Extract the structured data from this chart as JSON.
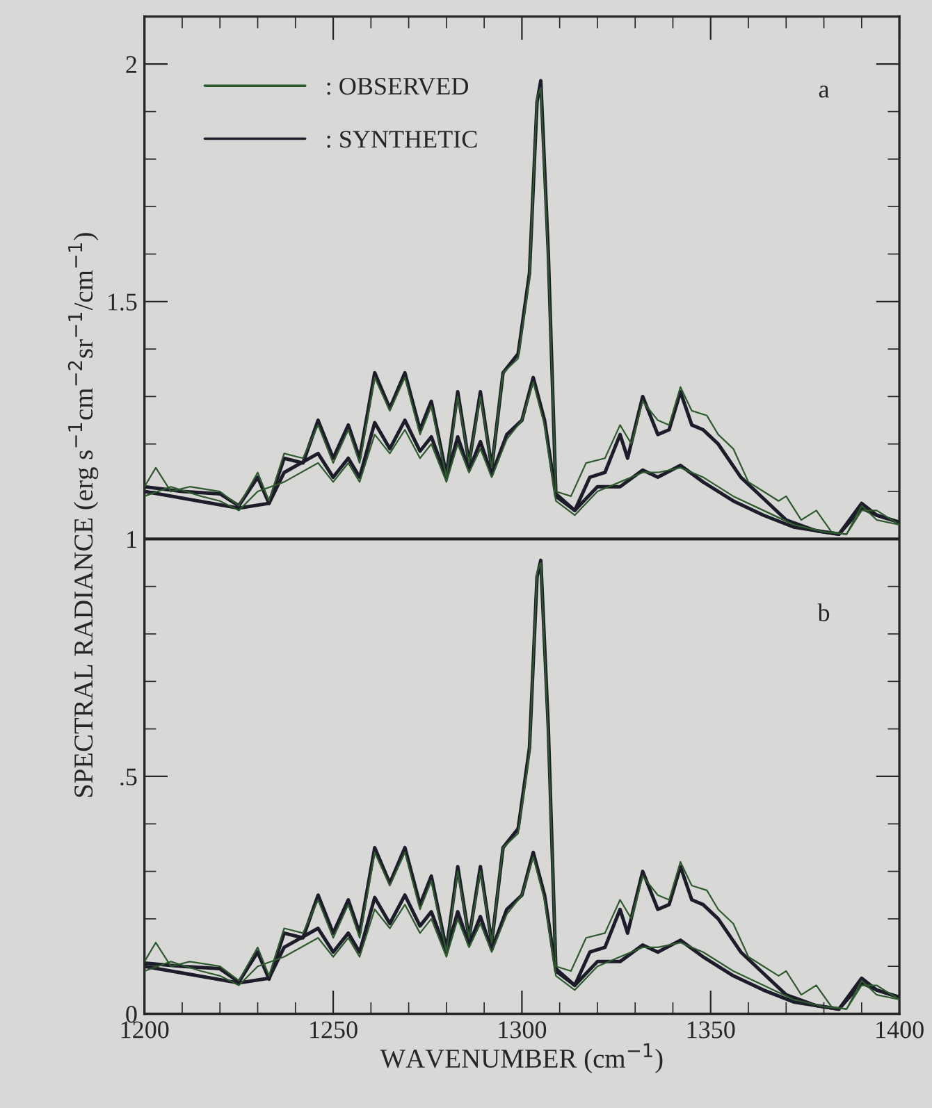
{
  "chart_data": {
    "type": "line",
    "xlabel": "WAVENUMBER (cm$^{−1}$)",
    "ylabel": "SPECTRAL RADIANCE (erg s$^{−1}$cm$^{−2}$sr$^{−1}$/cm$^{−1}$)",
    "xlim": [
      1200,
      1400
    ],
    "ylim": [
      0,
      2.1
    ],
    "xticks": [
      1200,
      {
        "value": 1210,
        "label": null
      },
      {
        "value": 1220,
        "label": null
      },
      {
        "value": 1230,
        "label": null
      },
      {
        "value": 1240,
        "label": null
      },
      1250,
      {
        "value": 1260,
        "label": null
      },
      {
        "value": 1270,
        "label": null
      },
      {
        "value": 1280,
        "label": null
      },
      {
        "value": 1290,
        "label": null
      },
      1300,
      {
        "value": 1310,
        "label": null
      },
      {
        "value": 1320,
        "label": null
      },
      {
        "value": 1330,
        "label": null
      },
      {
        "value": 1340,
        "label": null
      },
      1350,
      {
        "value": 1360,
        "label": null
      },
      {
        "value": 1370,
        "label": null
      },
      {
        "value": 1380,
        "label": null
      },
      {
        "value": 1390,
        "label": null
      },
      1400
    ],
    "yticks": [
      0,
      {
        "value": 0.1,
        "label": null
      },
      {
        "value": 0.2,
        "label": null
      },
      {
        "value": 0.3,
        "label": null
      },
      {
        "value": 0.4,
        "label": null
      },
      {
        "value": 0.5,
        "label": ".5"
      },
      {
        "value": 0.6,
        "label": null
      },
      {
        "value": 0.7,
        "label": null
      },
      {
        "value": 0.8,
        "label": null
      },
      {
        "value": 0.9,
        "label": null
      },
      1,
      {
        "value": 1.1,
        "label": null
      },
      {
        "value": 1.2,
        "label": null
      },
      {
        "value": 1.3,
        "label": null
      },
      {
        "value": 1.4,
        "label": null
      },
      1.5,
      {
        "value": 1.6,
        "label": null
      },
      {
        "value": 1.7,
        "label": null
      },
      {
        "value": 1.8,
        "label": null
      },
      {
        "value": 1.9,
        "label": null
      },
      2
    ],
    "legend": "top left",
    "grid": false,
    "line_style": "solid",
    "marker": "none",
    "ref_lines": [
      {
        "axis": "y",
        "value": 1,
        "label": null,
        "color": "#222222"
      }
    ],
    "annotations": [
      "a",
      "b"
    ],
    "series": [
      {
        "name": ": OBSERVED",
        "color": "#2f5a2f",
        "x": [
          1200,
          1203,
          1207,
          1212,
          1220,
          1225,
          1230,
          1233,
          1237,
          1242,
          1246,
          1250,
          1254,
          1257,
          1261,
          1265,
          1269,
          1273,
          1276,
          1280,
          1283,
          1286,
          1289,
          1292,
          1295,
          1299,
          1302,
          1304,
          1305,
          1307,
          1309,
          1313,
          1317,
          1322,
          1326,
          1329,
          1332,
          1336,
          1339,
          1342,
          1345,
          1349,
          1352,
          1356,
          1360,
          1364,
          1368,
          1370,
          1374,
          1378,
          1382,
          1386,
          1390,
          1394,
          1400
        ],
        "values": [
          1.11,
          1.15,
          1.1,
          1.11,
          1.1,
          1.07,
          1.14,
          1.08,
          1.18,
          1.17,
          1.24,
          1.16,
          1.23,
          1.16,
          1.34,
          1.27,
          1.34,
          1.22,
          1.28,
          1.13,
          1.3,
          1.16,
          1.3,
          1.15,
          1.35,
          1.38,
          1.55,
          1.93,
          1.95,
          1.58,
          1.1,
          1.09,
          1.16,
          1.17,
          1.24,
          1.2,
          1.29,
          1.25,
          1.24,
          1.32,
          1.27,
          1.26,
          1.22,
          1.19,
          1.12,
          1.1,
          1.08,
          1.09,
          1.04,
          1.06,
          1.015,
          1.01,
          1.07,
          1.04,
          1.03
        ]
      },
      {
        "color": "#2f5a2f",
        "x": [
          1200,
          1207,
          1215,
          1220,
          1225,
          1230,
          1237,
          1246,
          1250,
          1254,
          1257,
          1261,
          1265,
          1269,
          1273,
          1276,
          1280,
          1283,
          1286,
          1289,
          1292,
          1296,
          1300,
          1303,
          1306,
          1309,
          1314,
          1320,
          1326,
          1332,
          1336,
          1342,
          1348,
          1356,
          1364,
          1372,
          1380,
          1386,
          1390,
          1394,
          1400
        ],
        "values": [
          1.09,
          1.11,
          1.09,
          1.08,
          1.06,
          1.1,
          1.12,
          1.16,
          1.12,
          1.16,
          1.12,
          1.22,
          1.18,
          1.23,
          1.17,
          1.2,
          1.12,
          1.2,
          1.14,
          1.19,
          1.13,
          1.21,
          1.25,
          1.33,
          1.24,
          1.08,
          1.05,
          1.1,
          1.12,
          1.14,
          1.14,
          1.15,
          1.13,
          1.09,
          1.06,
          1.03,
          1.015,
          1.01,
          1.06,
          1.06,
          1.03
        ]
      },
      {
        "name": ": SYNTHETIC",
        "color": "#1c1c2a",
        "x": [
          1200,
          1210,
          1220,
          1225,
          1230,
          1233,
          1237,
          1242,
          1246,
          1250,
          1254,
          1257,
          1261,
          1265,
          1269,
          1273,
          1276,
          1280,
          1283,
          1286,
          1289,
          1292,
          1295,
          1299,
          1302,
          1304,
          1305,
          1307,
          1309,
          1314,
          1318,
          1322,
          1326,
          1328,
          1332,
          1336,
          1339,
          1342,
          1345,
          1348,
          1352,
          1358,
          1364,
          1370,
          1378,
          1384,
          1390,
          1394,
          1400
        ],
        "values": [
          1.11,
          1.1,
          1.095,
          1.07,
          1.13,
          1.075,
          1.17,
          1.16,
          1.25,
          1.17,
          1.24,
          1.17,
          1.35,
          1.275,
          1.35,
          1.23,
          1.29,
          1.135,
          1.31,
          1.16,
          1.31,
          1.15,
          1.35,
          1.39,
          1.56,
          1.92,
          1.965,
          1.6,
          1.095,
          1.06,
          1.13,
          1.14,
          1.22,
          1.17,
          1.3,
          1.22,
          1.23,
          1.31,
          1.24,
          1.23,
          1.2,
          1.13,
          1.085,
          1.04,
          1.017,
          1.01,
          1.075,
          1.05,
          1.035
        ]
      },
      {
        "color": "#1c1c2a",
        "x": [
          1200,
          1225,
          1233,
          1237,
          1246,
          1250,
          1254,
          1257,
          1261,
          1265,
          1269,
          1273,
          1276,
          1280,
          1283,
          1286,
          1289,
          1292,
          1296,
          1300,
          1303,
          1306,
          1309,
          1314,
          1320,
          1326,
          1332,
          1336,
          1342,
          1348,
          1356,
          1364,
          1372,
          1384,
          1390,
          1394,
          1400
        ],
        "values": [
          1.1,
          1.065,
          1.075,
          1.14,
          1.18,
          1.13,
          1.17,
          1.13,
          1.245,
          1.19,
          1.25,
          1.185,
          1.215,
          1.13,
          1.215,
          1.145,
          1.205,
          1.135,
          1.22,
          1.25,
          1.34,
          1.25,
          1.09,
          1.06,
          1.11,
          1.11,
          1.145,
          1.13,
          1.155,
          1.12,
          1.08,
          1.05,
          1.025,
          1.01,
          1.065,
          1.05,
          1.035
        ]
      },
      {
        "color": "#2f5a2f",
        "x": [
          1200,
          1203,
          1207,
          1212,
          1220,
          1225,
          1230,
          1233,
          1237,
          1242,
          1246,
          1250,
          1254,
          1257,
          1261,
          1265,
          1269,
          1273,
          1276,
          1280,
          1283,
          1286,
          1289,
          1292,
          1295,
          1299,
          1302,
          1304,
          1305,
          1307,
          1309,
          1313,
          1317,
          1322,
          1326,
          1329,
          1332,
          1336,
          1339,
          1342,
          1345,
          1349,
          1352,
          1356,
          1360,
          1364,
          1368,
          1370,
          1374,
          1378,
          1382,
          1386,
          1390,
          1394,
          1400
        ],
        "values": [
          0.11,
          0.15,
          0.1,
          0.11,
          0.1,
          0.07,
          0.14,
          0.08,
          0.18,
          0.17,
          0.24,
          0.16,
          0.23,
          0.16,
          0.34,
          0.27,
          0.34,
          0.22,
          0.28,
          0.13,
          0.3,
          0.16,
          0.3,
          0.15,
          0.35,
          0.38,
          0.55,
          0.93,
          0.95,
          0.58,
          0.1,
          0.09,
          0.16,
          0.17,
          0.24,
          0.2,
          0.29,
          0.25,
          0.24,
          0.32,
          0.27,
          0.26,
          0.22,
          0.19,
          0.12,
          0.1,
          0.08,
          0.09,
          0.04,
          0.06,
          0.015,
          0.01,
          0.07,
          0.04,
          0.03
        ]
      },
      {
        "color": "#2f5a2f",
        "x": [
          1200,
          1207,
          1215,
          1220,
          1225,
          1230,
          1237,
          1246,
          1250,
          1254,
          1257,
          1261,
          1265,
          1269,
          1273,
          1276,
          1280,
          1283,
          1286,
          1289,
          1292,
          1296,
          1300,
          1303,
          1306,
          1309,
          1314,
          1320,
          1326,
          1332,
          1336,
          1342,
          1348,
          1356,
          1364,
          1372,
          1380,
          1386,
          1390,
          1394,
          1400
        ],
        "values": [
          0.09,
          0.11,
          0.09,
          0.08,
          0.06,
          0.1,
          0.12,
          0.16,
          0.12,
          0.16,
          0.12,
          0.22,
          0.18,
          0.23,
          0.17,
          0.2,
          0.12,
          0.2,
          0.14,
          0.19,
          0.13,
          0.21,
          0.25,
          0.33,
          0.24,
          0.08,
          0.05,
          0.1,
          0.12,
          0.14,
          0.14,
          0.15,
          0.13,
          0.09,
          0.06,
          0.03,
          0.015,
          0.01,
          0.06,
          0.06,
          0.03
        ]
      },
      {
        "color": "#1c1c2a",
        "x": [
          1200,
          1210,
          1220,
          1225,
          1230,
          1233,
          1237,
          1242,
          1246,
          1250,
          1254,
          1257,
          1261,
          1265,
          1269,
          1273,
          1276,
          1280,
          1283,
          1286,
          1289,
          1292,
          1295,
          1299,
          1302,
          1304,
          1305,
          1307,
          1309,
          1314,
          1318,
          1322,
          1326,
          1328,
          1332,
          1336,
          1339,
          1342,
          1345,
          1348,
          1352,
          1358,
          1364,
          1370,
          1378,
          1384,
          1390,
          1394,
          1400
        ],
        "values": [
          0.107,
          0.1,
          0.095,
          0.067,
          0.13,
          0.073,
          0.17,
          0.16,
          0.25,
          0.17,
          0.24,
          0.17,
          0.35,
          0.275,
          0.35,
          0.23,
          0.29,
          0.135,
          0.31,
          0.16,
          0.31,
          0.15,
          0.35,
          0.39,
          0.56,
          0.92,
          0.955,
          0.6,
          0.095,
          0.06,
          0.13,
          0.14,
          0.22,
          0.17,
          0.3,
          0.22,
          0.23,
          0.31,
          0.24,
          0.23,
          0.2,
          0.13,
          0.085,
          0.04,
          0.017,
          0.01,
          0.075,
          0.05,
          0.035
        ]
      },
      {
        "color": "#1c1c2a",
        "x": [
          1200,
          1225,
          1233,
          1237,
          1246,
          1250,
          1254,
          1257,
          1261,
          1265,
          1269,
          1273,
          1276,
          1280,
          1283,
          1286,
          1289,
          1292,
          1296,
          1300,
          1303,
          1306,
          1309,
          1314,
          1320,
          1326,
          1332,
          1336,
          1342,
          1348,
          1356,
          1364,
          1372,
          1384,
          1390,
          1394,
          1400
        ],
        "values": [
          0.1,
          0.065,
          0.075,
          0.14,
          0.18,
          0.13,
          0.17,
          0.13,
          0.245,
          0.19,
          0.25,
          0.185,
          0.215,
          0.13,
          0.215,
          0.145,
          0.205,
          0.135,
          0.22,
          0.25,
          0.34,
          0.25,
          0.09,
          0.06,
          0.11,
          0.11,
          0.145,
          0.13,
          0.155,
          0.12,
          0.08,
          0.05,
          0.025,
          0.01,
          0.065,
          0.05,
          0.035
        ]
      }
    ]
  }
}
